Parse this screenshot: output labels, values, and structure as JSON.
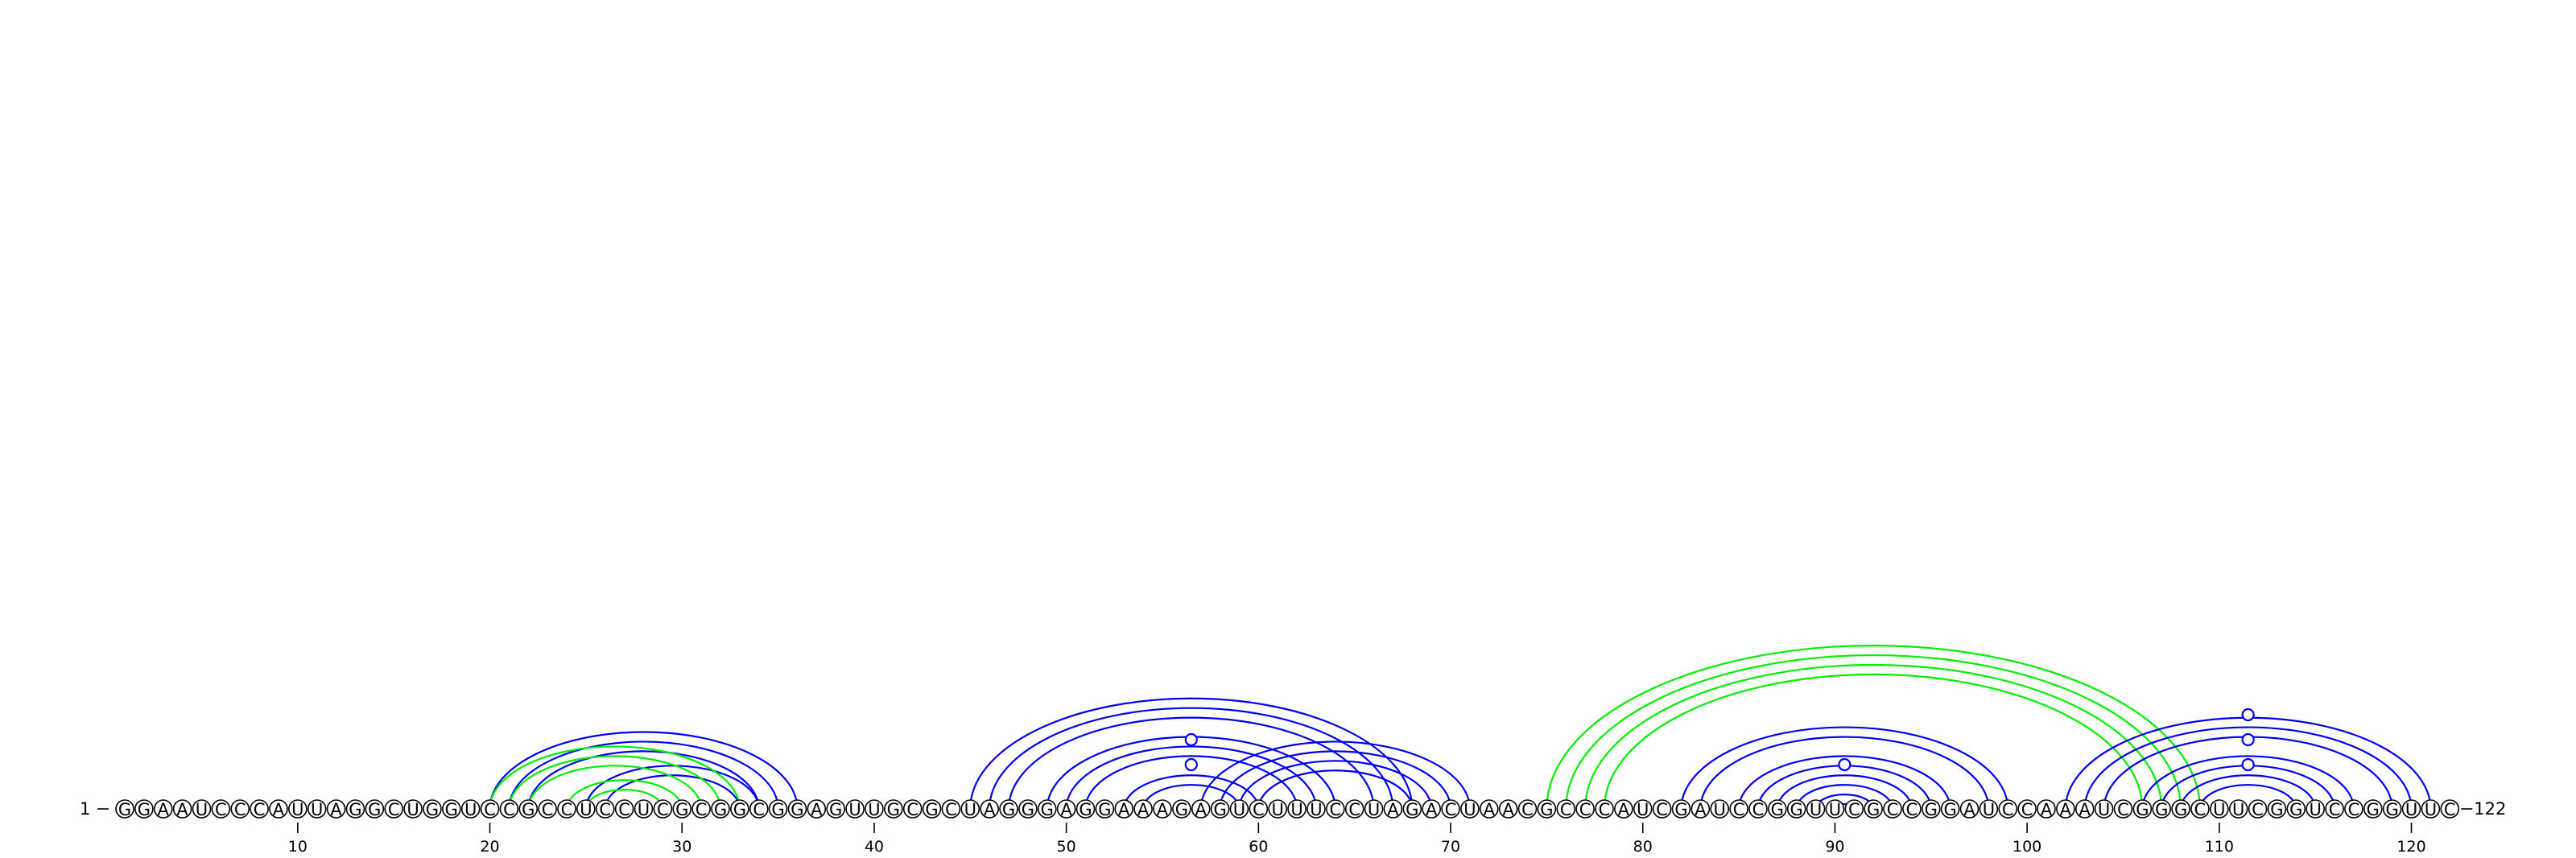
{
  "sequence": "GGAAUCCCAUUAGGCUGGUCCGCCUCCUCGCGGCGGAGUUGCGCUAGGGAGGAAAGAGUCUUUCCUAGACUAACGCCCAUCGAUCCGGUUCGCCGGAUCCAAAUCGGGCUUCGGUCCGGUUC",
  "start_label": "1",
  "end_label": "122",
  "ticks": [
    10,
    20,
    30,
    40,
    50,
    60,
    70,
    80,
    90,
    100,
    110,
    120
  ],
  "colors": {
    "primary": "#0000ee",
    "alternative": "#00ee00",
    "text": "#000000"
  },
  "stems": [
    {
      "color": "primary",
      "i": 20,
      "j": 36,
      "n": 3
    },
    {
      "color": "primary",
      "i": 25,
      "j": 34,
      "n": 2
    },
    {
      "color": "alternative",
      "i": 20,
      "j": 33,
      "n": 3
    },
    {
      "color": "alternative",
      "i": 24,
      "j": 30,
      "n": 2
    },
    {
      "color": "primary",
      "i": 45,
      "j": 68,
      "n": 3
    },
    {
      "color": "primary",
      "i": 49,
      "j": 64,
      "n": 3
    },
    {
      "color": "primary",
      "i": 53,
      "j": 60,
      "n": 2
    },
    {
      "color": "primary",
      "i": 57,
      "j": 71,
      "n": 4
    },
    {
      "color": "alternative",
      "i": 75,
      "j": 109,
      "n": 4
    },
    {
      "color": "primary",
      "i": 82,
      "j": 99,
      "n": 2
    },
    {
      "color": "primary",
      "i": 85,
      "j": 96,
      "n": 6
    },
    {
      "color": "primary",
      "i": 102,
      "j": 121,
      "n": 3
    },
    {
      "color": "primary",
      "i": 106,
      "j": 117,
      "n": 4
    }
  ],
  "markers": [
    {
      "color": "primary",
      "i": 56,
      "j": 57
    },
    {
      "color": "primary",
      "i": 56,
      "j": 57
    },
    {
      "color": "primary",
      "i": 90,
      "j": 91
    },
    {
      "color": "primary",
      "i": 111,
      "j": 112
    },
    {
      "color": "primary",
      "i": 111,
      "j": 112
    },
    {
      "color": "primary",
      "i": 111,
      "j": 112
    }
  ]
}
